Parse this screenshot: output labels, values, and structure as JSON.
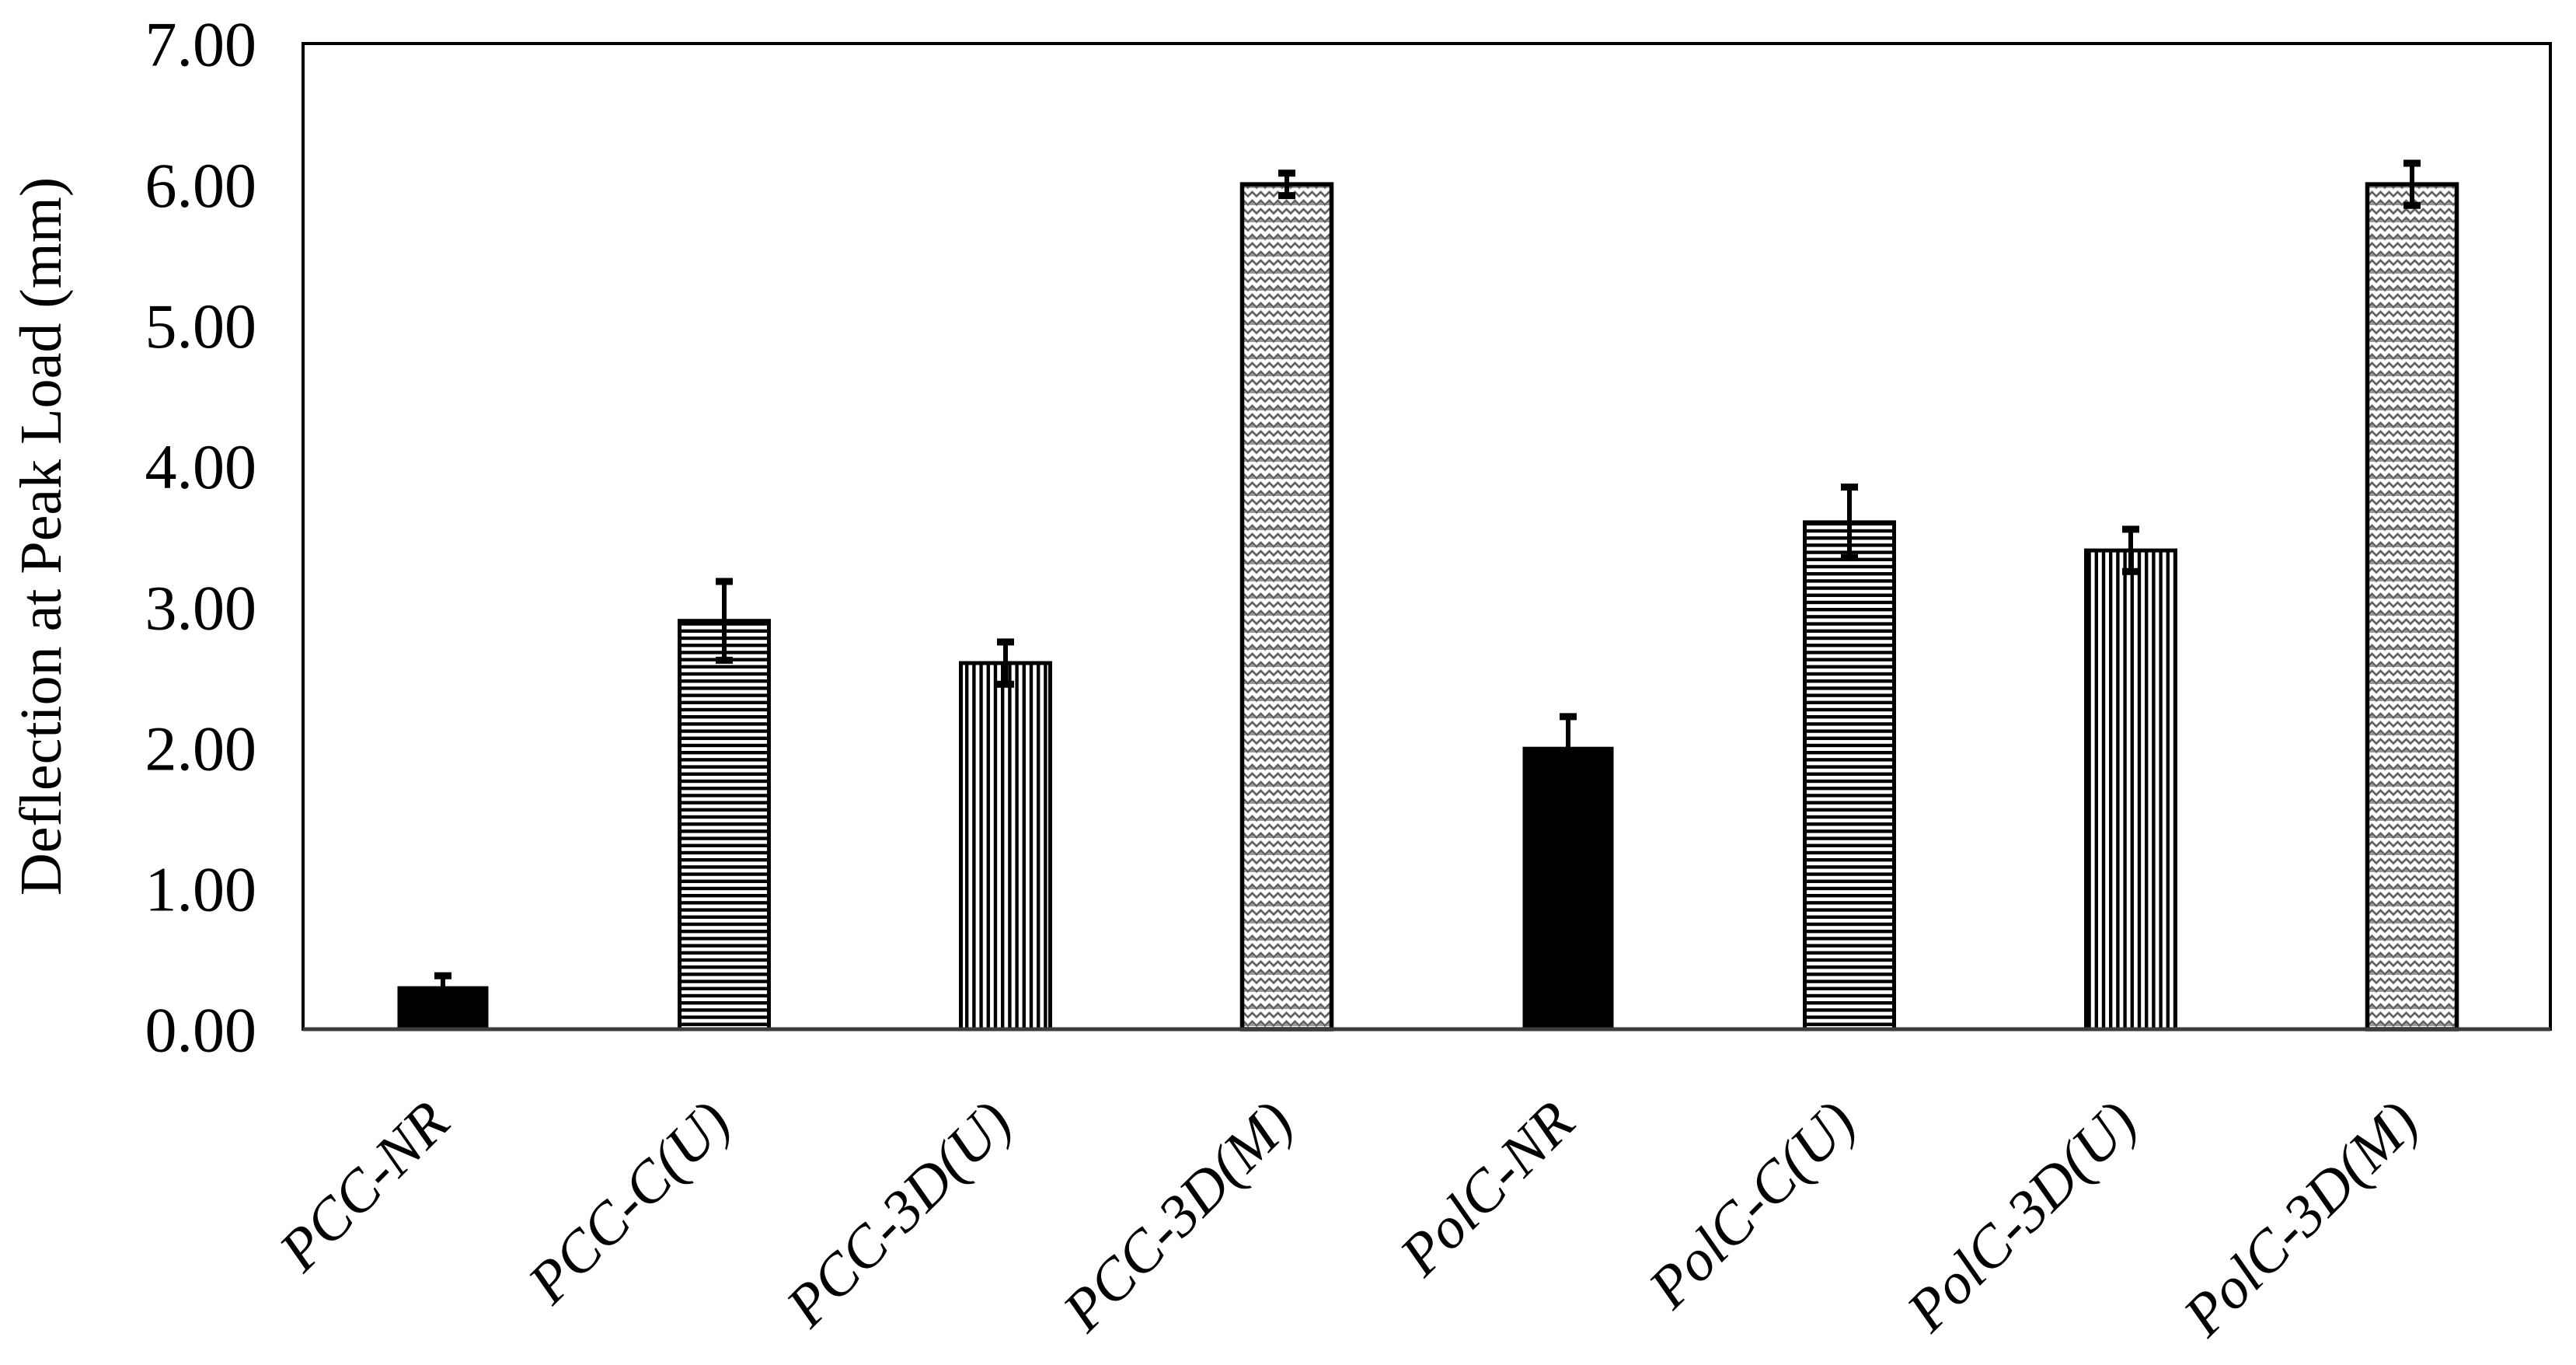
{
  "figure": {
    "background": "#ffffff"
  },
  "chart_data": {
    "type": "bar",
    "title": "",
    "xlabel": "",
    "ylabel": "Deflection at Peak Load (mm)",
    "categories": [
      "PCC-NR",
      "PCC-C(U)",
      "PCC-3D(U)",
      "PCC-3D(M)",
      "PolC-NR",
      "PolC-C(U)",
      "PolC-3D(U)",
      "PolC-3D(M)"
    ],
    "values": [
      0.3,
      2.9,
      2.6,
      6.0,
      2.0,
      3.6,
      3.4,
      6.0
    ],
    "error_bars": [
      0.08,
      0.28,
      0.15,
      0.08,
      0.22,
      0.25,
      0.15,
      0.15
    ],
    "bar_styles": [
      "solid-black",
      "horizontal-stripes",
      "vertical-stripes",
      "gray-weave",
      "solid-black",
      "horizontal-stripes",
      "vertical-stripes",
      "gray-weave"
    ],
    "ylim": [
      0,
      7
    ],
    "ytick_interval": 1.0,
    "ytick_labels": [
      "0.00",
      "1.00",
      "2.00",
      "3.00",
      "4.00",
      "5.00",
      "6.00",
      "7.00"
    ],
    "grid": false,
    "legend": "none",
    "colors": {
      "bar_ink": "#000000",
      "weave_gray": "#9a9a9a",
      "weave_light": "#ffffff",
      "axis": "#000000",
      "text": "#000000",
      "background": "#ffffff"
    }
  }
}
